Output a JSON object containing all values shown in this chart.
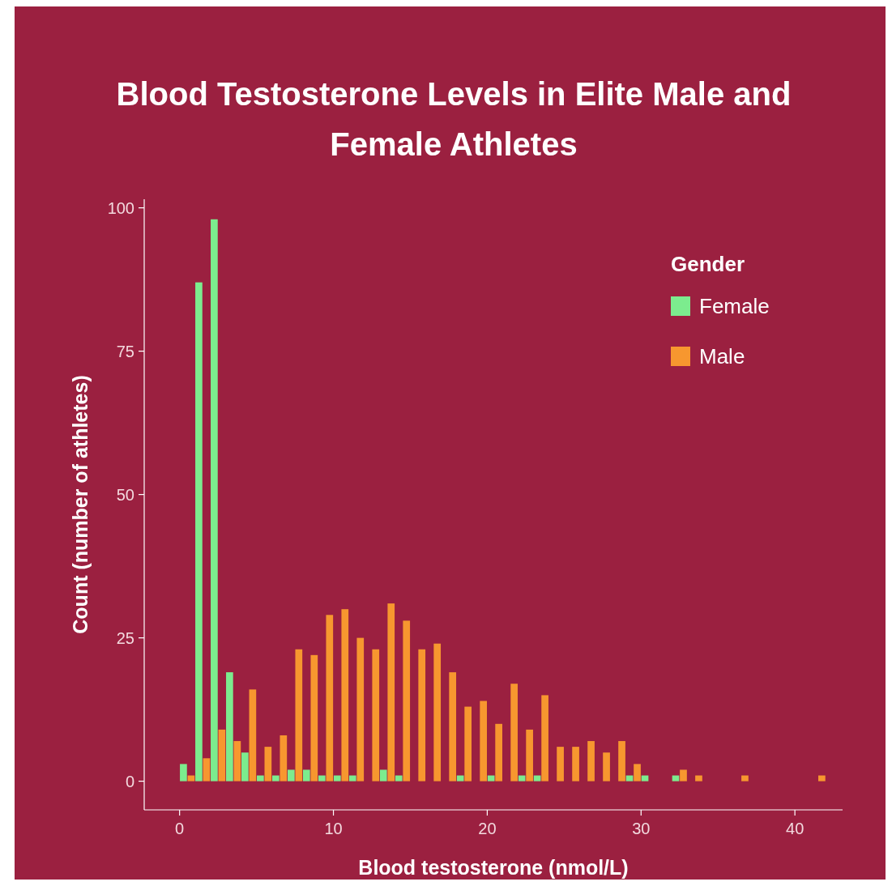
{
  "chart_data": {
    "type": "histogram",
    "title": "Blood Testosterone Levels in Elite Male and Female Athletes",
    "xlabel": "Blood testosterone (nmol/L)",
    "ylabel": "Count (number of athletes)",
    "legend_title": "Gender",
    "legend": "top right",
    "bins": [
      0,
      1,
      2,
      3,
      4,
      5,
      6,
      7,
      8,
      9,
      10,
      11,
      12,
      13,
      14,
      15,
      16,
      17,
      18,
      19,
      20,
      21,
      22,
      23,
      24,
      25,
      26,
      27,
      28,
      29,
      30,
      31,
      32,
      33,
      34,
      35,
      36,
      37,
      38,
      39,
      40,
      41,
      42
    ],
    "series": [
      {
        "name": "Female",
        "color": "#7cec8e",
        "values": [
          3,
          87,
          98,
          19,
          5,
          1,
          1,
          2,
          2,
          1,
          1,
          1,
          0,
          2,
          1,
          0,
          0,
          0,
          1,
          0,
          1,
          0,
          1,
          1,
          0,
          0,
          0,
          0,
          0,
          1,
          1,
          0,
          1,
          0,
          0,
          0,
          0,
          0,
          0,
          0,
          0,
          0
        ]
      },
      {
        "name": "Male",
        "color": "#f7972f",
        "values": [
          1,
          4,
          9,
          7,
          16,
          6,
          8,
          23,
          22,
          29,
          30,
          25,
          23,
          31,
          28,
          23,
          24,
          19,
          13,
          14,
          10,
          17,
          9,
          15,
          6,
          6,
          7,
          5,
          7,
          3,
          0,
          0,
          2,
          1,
          0,
          0,
          1,
          0,
          0,
          0,
          0,
          1
        ]
      }
    ],
    "xlim": [
      -2.3,
      43.1
    ],
    "xticks": [
      0,
      10,
      20,
      30,
      40
    ],
    "ylim": [
      -5,
      101.5
    ],
    "yticks": [
      0,
      25,
      50,
      75,
      100
    ]
  }
}
